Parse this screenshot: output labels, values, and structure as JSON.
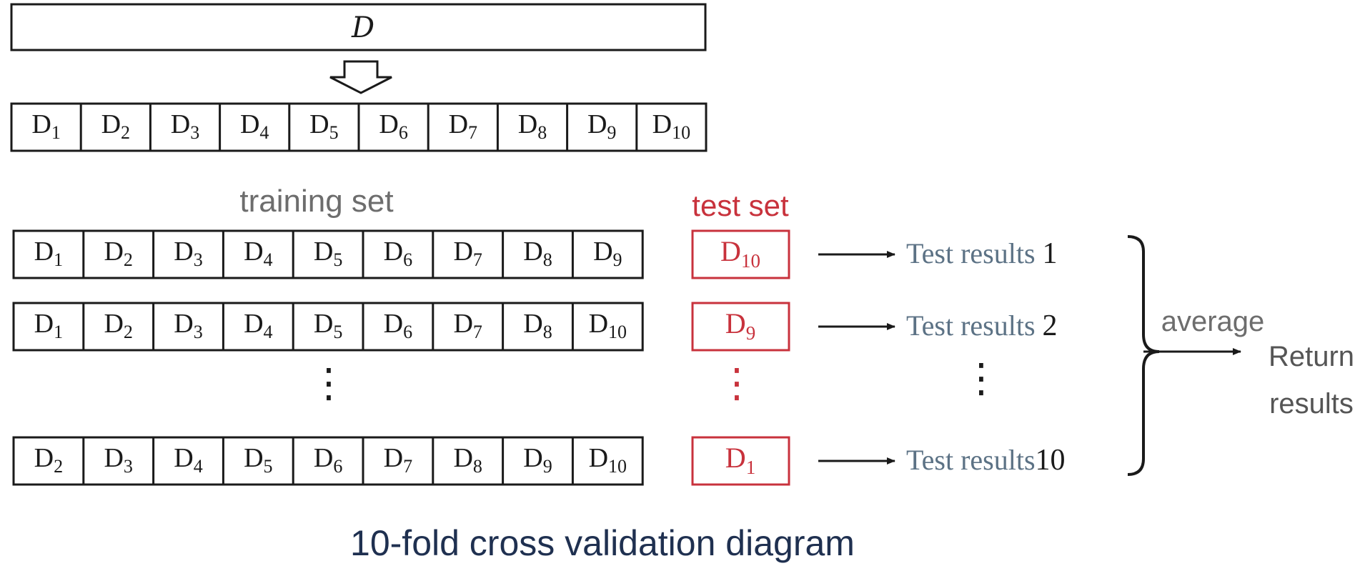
{
  "diagram": {
    "top_box_label": "D",
    "folds": [
      "D1",
      "D2",
      "D3",
      "D4",
      "D5",
      "D6",
      "D7",
      "D8",
      "D9",
      "D10"
    ],
    "training_set_label": "training set",
    "test_set_label": "test set",
    "rows": [
      {
        "train": [
          "D1",
          "D2",
          "D3",
          "D4",
          "D5",
          "D6",
          "D7",
          "D8",
          "D9"
        ],
        "test": "D10",
        "result_text": "Test results ",
        "result_num": "1"
      },
      {
        "train": [
          "D1",
          "D2",
          "D3",
          "D4",
          "D5",
          "D6",
          "D7",
          "D8",
          "D10"
        ],
        "test": "D9",
        "result_text": "Test results ",
        "result_num": "2"
      },
      {
        "train": [
          "D2",
          "D3",
          "D4",
          "D5",
          "D6",
          "D7",
          "D8",
          "D9",
          "D10"
        ],
        "test": "D1",
        "result_text": "Test results",
        "result_num": "10"
      }
    ],
    "ellipsis": "⋮",
    "average_label": "average",
    "return_label_line1": "Return",
    "return_label_line2": "results",
    "caption": "10-fold cross validation diagram"
  },
  "colors": {
    "black": "#1a1a1a",
    "gray_label": "#6d6d6d",
    "test_red": "#c8323c",
    "result_blue": "#5c7285",
    "caption_navy": "#1f3050"
  }
}
